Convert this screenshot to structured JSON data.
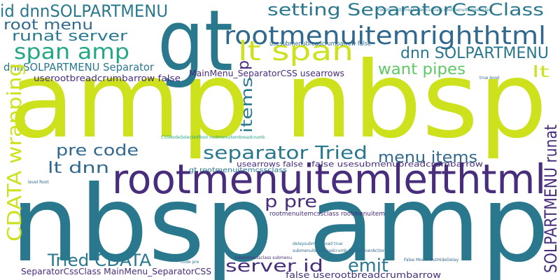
{
  "words": [
    "amp nbsp",
    "nbsp amp",
    "gt",
    "rootmenuitemlefthtml",
    "rootmenuitemrighthtml",
    "setting SeparatorCssClass",
    "id dnnSOLPARTMENU",
    "root menu",
    "runat server",
    "span amp",
    "lt span",
    "dnn SOLPARTMENU",
    "want pipes",
    "lt",
    "dnnSOLPARTMENU Separator",
    "userootbreadcrumbarrow false",
    "MainMenu_SeparatorCSS usearrows",
    "usesubmenubreadcrumbarrow false",
    "CDATA wrapping",
    "items",
    "p",
    "pre code",
    "separator Tried",
    "menu items",
    "SOLPARTMENU runat",
    "lt dnn",
    "usearrows false",
    "false usesubmenubreadcrumbarrow",
    "gt rootmenuitemcssclass",
    "p pre",
    "Tried CDATA",
    "server id",
    "emit",
    "SeparatorCssClass MainMenu_SeparatorCSS",
    "false userootbreadcrumbarrow",
    "rootmenuitemcssclass rootmenuitem",
    "true level",
    "rootmenuitemselectedcssclass rootmenuitemselected",
    "submenucssclass submenu",
    "CSSNodeSelectedRoot rootmenuitembreadcrumb",
    "delaysubmenuload true",
    "submenuitembreadcrumb MouseOverAction",
    "False MouseOutHideDelay",
    "code pre",
    "level Root"
  ]
}
